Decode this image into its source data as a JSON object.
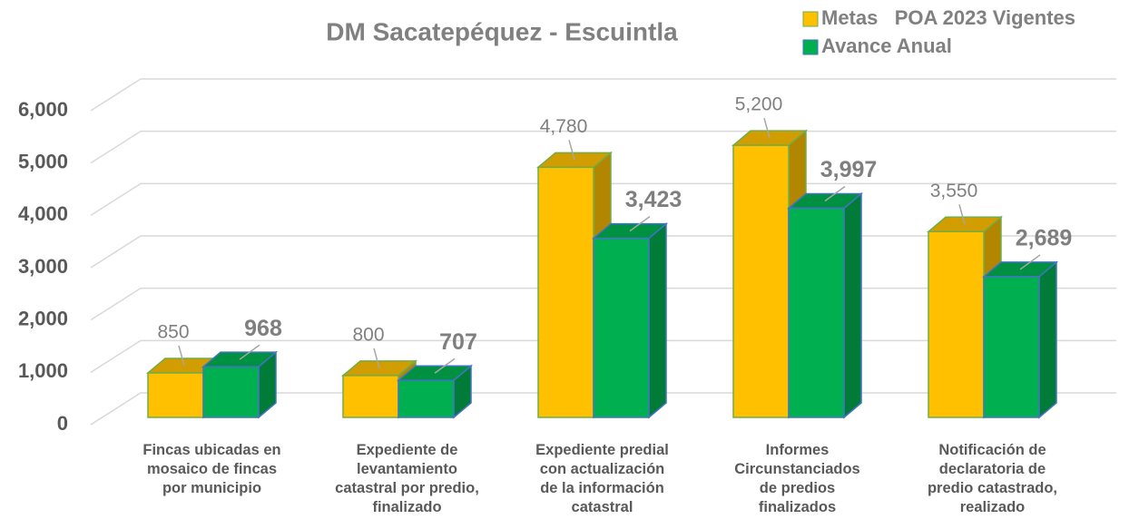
{
  "chart_data": {
    "type": "bar3d",
    "title": "DM Sacatepéquez - Escuintla",
    "categories": [
      "Fincas ubicadas en mosaico de fincas por municipio",
      "Expediente de levantamiento catastral por predio, finalizado",
      "Expediente predial con actualización de la información catastral",
      "Informes Circunstanciados de predios finalizados",
      "Notificación de declaratoria de predio catastrado, realizado"
    ],
    "series": [
      {
        "name": "Metas   POA 2023 Vigentes",
        "color": "#FFC000",
        "values": [
          850,
          800,
          4780,
          5200,
          3550
        ],
        "value_labels": [
          "850",
          "800",
          "4,780",
          "5,200",
          "3,550"
        ]
      },
      {
        "name": "Avance Anual",
        "color": "#00B050",
        "values": [
          968,
          707,
          3423,
          3997,
          2689
        ],
        "value_labels": [
          "968",
          "707",
          "3,423",
          "3,997",
          "2,689"
        ]
      }
    ],
    "ylim": [
      0,
      6000
    ],
    "yticks": [
      0,
      {
        "value": 1000,
        "label": "1,000"
      },
      {
        "value": 2000,
        "label": "2,000"
      },
      {
        "value": 3000,
        "label": "3,000"
      },
      {
        "value": 4000,
        "label": "4,000"
      },
      {
        "value": 5000,
        "label": "5,000"
      },
      {
        "value": 6000,
        "label": "6,000"
      }
    ],
    "grid": true,
    "legend": "top-right"
  }
}
